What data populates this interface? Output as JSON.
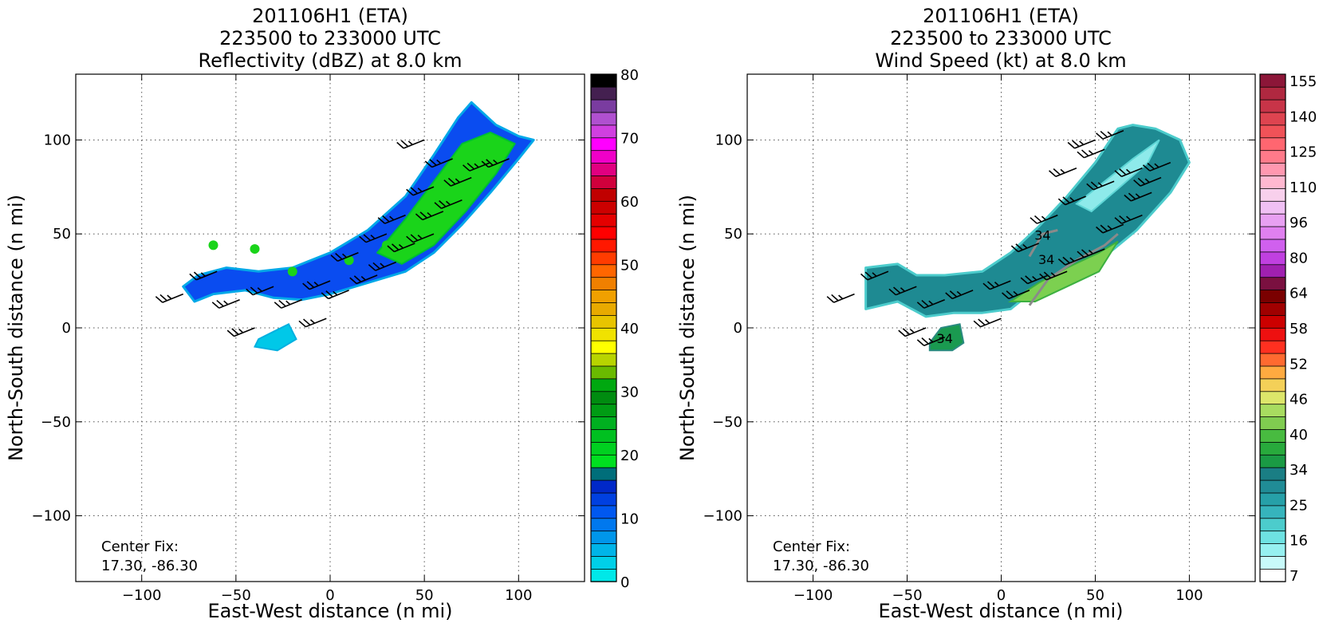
{
  "chart_data": [
    {
      "type": "heatmap",
      "title_lines": [
        "201106H1 (ETA)",
        "223500 to 233000 UTC",
        "Reflectivity (dBZ) at 8.0 km"
      ],
      "xlabel": "East-West distance (n mi)",
      "ylabel": "North-South distance (n mi)",
      "xlim": [
        -135,
        135
      ],
      "ylim": [
        -135,
        135
      ],
      "x_ticks": [
        -100,
        -50,
        0,
        50,
        100
      ],
      "y_ticks": [
        -100,
        -50,
        0,
        50,
        100
      ],
      "grid": true,
      "annotation_lines": [
        "Center Fix:",
        "17.30, -86.30"
      ],
      "colorbar": {
        "min": 0,
        "max": 80,
        "tick_values": [
          0,
          10,
          20,
          30,
          40,
          50,
          60,
          70,
          80
        ],
        "tick_labels": [
          "0",
          "10",
          "20",
          "30",
          "40",
          "50",
          "60",
          "70",
          "80"
        ],
        "colors": [
          "#00e8e8",
          "#00d0e8",
          "#00b4e8",
          "#0096ea",
          "#0078ee",
          "#0058f0",
          "#0040e0",
          "#0028c8",
          "#006e7a",
          "#00e020",
          "#00d020",
          "#00c020",
          "#00b020",
          "#009c14",
          "#008c10",
          "#00a810",
          "#6aba00",
          "#b8d400",
          "#ffff00",
          "#f0e200",
          "#e8c400",
          "#e8aa00",
          "#f0a000",
          "#f08000",
          "#ff6600",
          "#ff3c00",
          "#ff1800",
          "#ff0000",
          "#e40000",
          "#cc0000",
          "#c00000",
          "#d0003c",
          "#e00080",
          "#f000c8",
          "#ff00ff",
          "#d040e0",
          "#b050d0",
          "#7a3ca0",
          "#442050",
          "#000000"
        ]
      },
      "swath_data_units": [
        [
          -78,
          22
        ],
        [
          -70,
          28
        ],
        [
          -55,
          32
        ],
        [
          -38,
          30
        ],
        [
          -20,
          32
        ],
        [
          0,
          40
        ],
        [
          20,
          52
        ],
        [
          40,
          70
        ],
        [
          55,
          92
        ],
        [
          68,
          112
        ],
        [
          75,
          120
        ],
        [
          88,
          108
        ],
        [
          100,
          102
        ],
        [
          108,
          100
        ],
        [
          100,
          90
        ],
        [
          85,
          72
        ],
        [
          70,
          55
        ],
        [
          55,
          40
        ],
        [
          40,
          30
        ],
        [
          20,
          24
        ],
        [
          0,
          18
        ],
        [
          -15,
          15
        ],
        [
          -30,
          16
        ],
        [
          -45,
          20
        ],
        [
          -62,
          18
        ],
        [
          -72,
          14
        ]
      ],
      "inner_core_data_units": [
        [
          25,
          40
        ],
        [
          40,
          58
        ],
        [
          55,
          78
        ],
        [
          70,
          98
        ],
        [
          85,
          104
        ],
        [
          98,
          98
        ],
        [
          88,
          82
        ],
        [
          72,
          62
        ],
        [
          55,
          44
        ],
        [
          38,
          34
        ]
      ],
      "blob_data_units": [
        [
          -38,
          -6
        ],
        [
          -30,
          -2
        ],
        [
          -22,
          2
        ],
        [
          -18,
          -6
        ],
        [
          -28,
          -12
        ],
        [
          -40,
          -10
        ]
      ],
      "wind_barbs_data_units": [
        [
          -78,
          18
        ],
        [
          -60,
          30
        ],
        [
          -48,
          15
        ],
        [
          -30,
          22
        ],
        [
          -15,
          15
        ],
        [
          0,
          25
        ],
        [
          10,
          20
        ],
        [
          25,
          28
        ],
        [
          35,
          35
        ],
        [
          45,
          45
        ],
        [
          55,
          50
        ],
        [
          60,
          62
        ],
        [
          70,
          68
        ],
        [
          75,
          80
        ],
        [
          85,
          88
        ],
        [
          95,
          90
        ],
        [
          40,
          60
        ],
        [
          55,
          75
        ],
        [
          65,
          90
        ],
        [
          50,
          100
        ],
        [
          -2,
          5
        ],
        [
          -40,
          0
        ],
        [
          15,
          40
        ],
        [
          30,
          50
        ]
      ]
    },
    {
      "type": "heatmap",
      "title_lines": [
        "201106H1 (ETA)",
        "223500 to 233000 UTC",
        "Wind Speed (kt) at 8.0 km"
      ],
      "xlabel": "East-West distance (n mi)",
      "ylabel": "North-South distance (n mi)",
      "xlim": [
        -135,
        135
      ],
      "ylim": [
        -135,
        135
      ],
      "x_ticks": [
        -100,
        -50,
        0,
        50,
        100
      ],
      "y_ticks": [
        -100,
        -50,
        0,
        50,
        100
      ],
      "grid": true,
      "annotation_lines": [
        "Center Fix:",
        "17.30, -86.30"
      ],
      "contour_labels": [
        {
          "text": "34",
          "x": 22,
          "y": 47
        },
        {
          "text": "34",
          "x": 24,
          "y": 34
        },
        {
          "text": "34",
          "x": -30,
          "y": -8
        }
      ],
      "colorbar": {
        "min": 7,
        "max": 160,
        "tick_values": [
          7,
          16,
          25,
          34,
          40,
          46,
          52,
          58,
          64,
          80,
          96,
          110,
          125,
          140,
          155
        ],
        "tick_labels": [
          "7",
          "16",
          "25",
          "34",
          "40",
          "46",
          "52",
          "58",
          "64",
          "80",
          "96",
          "110",
          "125",
          "140",
          "155"
        ],
        "colors": [
          "#ffffff",
          "#c8fafa",
          "#96f0f0",
          "#6ee2e2",
          "#4ccccc",
          "#36b4bc",
          "#26a0a8",
          "#208c96",
          "#1a7e84",
          "#1a9a44",
          "#28aa3c",
          "#48bb40",
          "#80cc50",
          "#a8dc60",
          "#dde66a",
          "#f4d058",
          "#ffaa40",
          "#ff6a30",
          "#ff3020",
          "#ee1010",
          "#cc0000",
          "#a00000",
          "#7a0000",
          "#7a1040",
          "#a020b0",
          "#c040e0",
          "#d060ee",
          "#e080f0",
          "#e8a0f2",
          "#f0c0f4",
          "#f8d0ec",
          "#ffb8d0",
          "#ff98b0",
          "#ff7a8a",
          "#ff6670",
          "#f05258",
          "#de4450",
          "#c83448",
          "#b02840",
          "#8c1638"
        ]
      },
      "swath_data_units": [
        [
          -72,
          32
        ],
        [
          -55,
          34
        ],
        [
          -45,
          28
        ],
        [
          -30,
          28
        ],
        [
          -10,
          30
        ],
        [
          5,
          40
        ],
        [
          20,
          54
        ],
        [
          35,
          70
        ],
        [
          50,
          88
        ],
        [
          62,
          106
        ],
        [
          70,
          108
        ],
        [
          82,
          106
        ],
        [
          95,
          100
        ],
        [
          100,
          88
        ],
        [
          90,
          72
        ],
        [
          72,
          52
        ],
        [
          55,
          38
        ],
        [
          40,
          28
        ],
        [
          20,
          22
        ],
        [
          5,
          10
        ],
        [
          -10,
          8
        ],
        [
          -25,
          8
        ],
        [
          -40,
          6
        ],
        [
          -55,
          14
        ],
        [
          -72,
          10
        ],
        [
          -72,
          22
        ]
      ],
      "light_region_data_units": [
        [
          40,
          66
        ],
        [
          55,
          78
        ],
        [
          70,
          90
        ],
        [
          84,
          100
        ],
        [
          78,
          88
        ],
        [
          62,
          74
        ],
        [
          48,
          62
        ]
      ],
      "green_region_data_units": [
        [
          5,
          14
        ],
        [
          20,
          24
        ],
        [
          35,
          32
        ],
        [
          52,
          40
        ],
        [
          62,
          46
        ],
        [
          52,
          30
        ],
        [
          35,
          22
        ],
        [
          18,
          14
        ]
      ],
      "blob_data_units": [
        [
          -38,
          -8
        ],
        [
          -32,
          0
        ],
        [
          -22,
          2
        ],
        [
          -20,
          -8
        ],
        [
          -26,
          -12
        ],
        [
          -38,
          -12
        ]
      ],
      "wind_barbs_data_units": [
        [
          -78,
          18
        ],
        [
          -60,
          30
        ],
        [
          -45,
          22
        ],
        [
          -30,
          15
        ],
        [
          -15,
          20
        ],
        [
          0,
          5
        ],
        [
          5,
          25
        ],
        [
          15,
          20
        ],
        [
          25,
          28
        ],
        [
          35,
          30
        ],
        [
          45,
          38
        ],
        [
          55,
          42
        ],
        [
          65,
          55
        ],
        [
          75,
          60
        ],
        [
          80,
          72
        ],
        [
          85,
          80
        ],
        [
          90,
          88
        ],
        [
          75,
          85
        ],
        [
          60,
          78
        ],
        [
          45,
          70
        ],
        [
          30,
          60
        ],
        [
          20,
          45
        ],
        [
          -40,
          0
        ],
        [
          -30,
          -5
        ],
        [
          40,
          85
        ],
        [
          50,
          100
        ],
        [
          55,
          95
        ],
        [
          65,
          105
        ]
      ]
    }
  ]
}
